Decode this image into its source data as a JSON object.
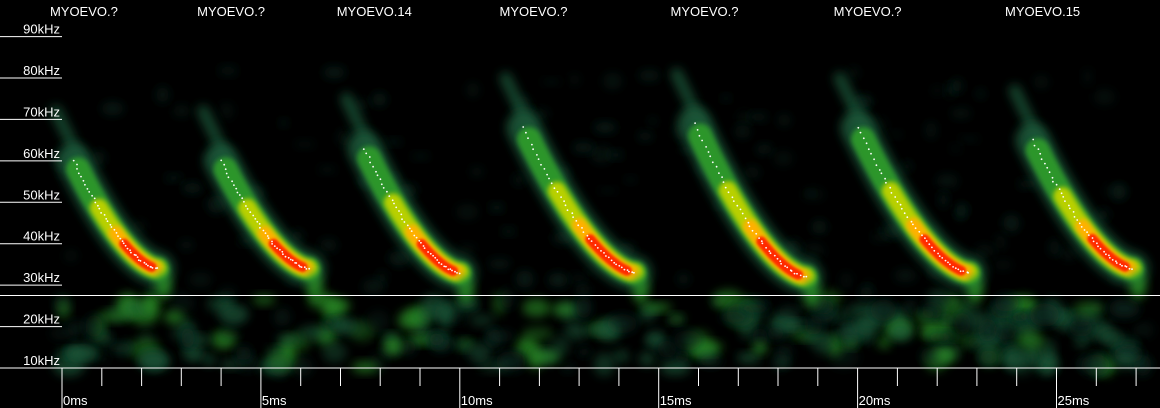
{
  "chart_data": {
    "type": "heatmap",
    "subtype": "spectrogram",
    "ylabel_ticks": [
      "90kHz",
      "80kHz",
      "70kHz",
      "60kHz",
      "50kHz",
      "40kHz",
      "30kHz",
      "20kHz",
      "10kHz"
    ],
    "y_tick_values_khz": [
      90,
      80,
      70,
      60,
      50,
      40,
      30,
      20,
      10
    ],
    "xlabel_ticks": [
      "0ms",
      "5ms",
      "10ms",
      "15ms",
      "20ms",
      "25ms"
    ],
    "x_tick_values_ms": [
      0,
      5,
      10,
      15,
      20,
      25
    ],
    "xlim_ms": [
      0,
      27.3
    ],
    "ylim_khz": [
      10,
      94
    ],
    "threshold_khz": 27.5,
    "colormap": [
      "#000000",
      "#0b2a24",
      "#1a5a3a",
      "#2d9a2a",
      "#b8d000",
      "#ffb000",
      "#ff2a00"
    ],
    "call_labels": [
      "MYOEVO.?",
      "MYOEVO.?",
      "MYOEVO.14",
      "MYOEVO.?",
      "MYOEVO.?",
      "MYOEVO.?",
      "MYOEVO.15"
    ],
    "calls": [
      {
        "label": "MYOEVO.?",
        "start_ms": 0.3,
        "end_ms": 2.4,
        "start_khz": 60,
        "end_khz": 34,
        "peak_khz": 37
      },
      {
        "label": "MYOEVO.?",
        "start_ms": 4.0,
        "end_ms": 6.2,
        "start_khz": 60,
        "end_khz": 34,
        "peak_khz": 37
      },
      {
        "label": "MYOEVO.14",
        "start_ms": 7.6,
        "end_ms": 10.0,
        "start_khz": 63,
        "end_khz": 33,
        "peak_khz": 36
      },
      {
        "label": "MYOEVO.?",
        "start_ms": 11.6,
        "end_ms": 14.4,
        "start_khz": 68,
        "end_khz": 33,
        "peak_khz": 37
      },
      {
        "label": "MYOEVO.?",
        "start_ms": 15.9,
        "end_ms": 18.7,
        "start_khz": 69,
        "end_khz": 32,
        "peak_khz": 37
      },
      {
        "label": "MYOEVO.?",
        "start_ms": 20.0,
        "end_ms": 22.8,
        "start_khz": 68,
        "end_khz": 33,
        "peak_khz": 36
      },
      {
        "label": "MYOEVO.15",
        "start_ms": 24.4,
        "end_ms": 26.9,
        "start_khz": 65,
        "end_khz": 34,
        "peak_khz": 37
      }
    ]
  }
}
